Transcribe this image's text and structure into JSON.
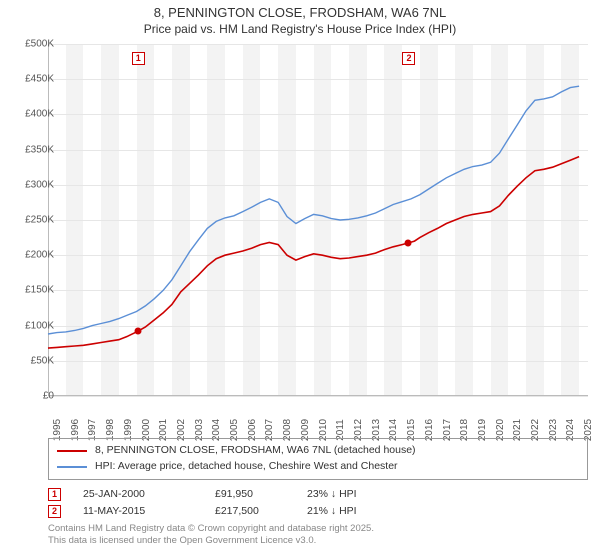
{
  "title": "8, PENNINGTON CLOSE, FRODSHAM, WA6 7NL",
  "subtitle": "Price paid vs. HM Land Registry's House Price Index (HPI)",
  "chart": {
    "type": "line",
    "background_color": "#ffffff",
    "shade_color": "#f3f3f3",
    "grid_color": "#e6e6e6",
    "axis_color": "#bbbbbb",
    "x_years": [
      1995,
      1996,
      1997,
      1998,
      1999,
      2000,
      2001,
      2002,
      2003,
      2004,
      2005,
      2006,
      2007,
      2008,
      2009,
      2010,
      2011,
      2012,
      2013,
      2014,
      2015,
      2016,
      2017,
      2018,
      2019,
      2020,
      2021,
      2022,
      2023,
      2024,
      2025
    ],
    "x_shaded_pairs": [
      [
        1996,
        1997
      ],
      [
        1998,
        1999
      ],
      [
        2000,
        2001
      ],
      [
        2002,
        2003
      ],
      [
        2004,
        2005
      ],
      [
        2006,
        2007
      ],
      [
        2008,
        2009
      ],
      [
        2010,
        2011
      ],
      [
        2012,
        2013
      ],
      [
        2014,
        2015
      ],
      [
        2016,
        2017
      ],
      [
        2018,
        2019
      ],
      [
        2020,
        2021
      ],
      [
        2022,
        2023
      ],
      [
        2024,
        2025
      ]
    ],
    "y_ticks": [
      0,
      50000,
      100000,
      150000,
      200000,
      250000,
      300000,
      350000,
      400000,
      450000,
      500000
    ],
    "y_tick_labels": [
      "£0",
      "£50K",
      "£100K",
      "£150K",
      "£200K",
      "£250K",
      "£300K",
      "£350K",
      "£400K",
      "£450K",
      "£500K"
    ],
    "ylim": [
      0,
      500000
    ],
    "xlim": [
      1995,
      2025.5
    ],
    "tick_fontsize": 10,
    "title_fontsize": 13,
    "series": [
      {
        "name": "price_paid",
        "label": "8, PENNINGTON CLOSE, FRODSHAM, WA6 7NL (detached house)",
        "color": "#cc0000",
        "line_width": 1.6,
        "data": [
          [
            1995.0,
            68000
          ],
          [
            1995.5,
            69000
          ],
          [
            1996.0,
            70000
          ],
          [
            1996.5,
            71000
          ],
          [
            1997.0,
            72000
          ],
          [
            1997.5,
            74000
          ],
          [
            1998.0,
            76000
          ],
          [
            1998.5,
            78000
          ],
          [
            1999.0,
            80000
          ],
          [
            1999.5,
            85000
          ],
          [
            2000.07,
            91950
          ],
          [
            2000.5,
            98000
          ],
          [
            2001.0,
            108000
          ],
          [
            2001.5,
            118000
          ],
          [
            2002.0,
            130000
          ],
          [
            2002.5,
            148000
          ],
          [
            2003.0,
            160000
          ],
          [
            2003.5,
            172000
          ],
          [
            2004.0,
            185000
          ],
          [
            2004.5,
            195000
          ],
          [
            2005.0,
            200000
          ],
          [
            2005.5,
            203000
          ],
          [
            2006.0,
            206000
          ],
          [
            2006.5,
            210000
          ],
          [
            2007.0,
            215000
          ],
          [
            2007.5,
            218000
          ],
          [
            2008.0,
            215000
          ],
          [
            2008.5,
            200000
          ],
          [
            2009.0,
            193000
          ],
          [
            2009.5,
            198000
          ],
          [
            2010.0,
            202000
          ],
          [
            2010.5,
            200000
          ],
          [
            2011.0,
            197000
          ],
          [
            2011.5,
            195000
          ],
          [
            2012.0,
            196000
          ],
          [
            2012.5,
            198000
          ],
          [
            2013.0,
            200000
          ],
          [
            2013.5,
            203000
          ],
          [
            2014.0,
            208000
          ],
          [
            2014.5,
            212000
          ],
          [
            2015.0,
            215000
          ],
          [
            2015.36,
            217500
          ],
          [
            2015.7,
            220000
          ],
          [
            2016.0,
            225000
          ],
          [
            2016.5,
            232000
          ],
          [
            2017.0,
            238000
          ],
          [
            2017.5,
            245000
          ],
          [
            2018.0,
            250000
          ],
          [
            2018.5,
            255000
          ],
          [
            2019.0,
            258000
          ],
          [
            2019.5,
            260000
          ],
          [
            2020.0,
            262000
          ],
          [
            2020.5,
            270000
          ],
          [
            2021.0,
            285000
          ],
          [
            2021.5,
            298000
          ],
          [
            2022.0,
            310000
          ],
          [
            2022.5,
            320000
          ],
          [
            2023.0,
            322000
          ],
          [
            2023.5,
            325000
          ],
          [
            2024.0,
            330000
          ],
          [
            2024.5,
            335000
          ],
          [
            2025.0,
            340000
          ]
        ]
      },
      {
        "name": "hpi",
        "label": "HPI: Average price, detached house, Cheshire West and Chester",
        "color": "#5b8fd6",
        "line_width": 1.4,
        "data": [
          [
            1995.0,
            88000
          ],
          [
            1995.5,
            90000
          ],
          [
            1996.0,
            91000
          ],
          [
            1996.5,
            93000
          ],
          [
            1997.0,
            96000
          ],
          [
            1997.5,
            100000
          ],
          [
            1998.0,
            103000
          ],
          [
            1998.5,
            106000
          ],
          [
            1999.0,
            110000
          ],
          [
            1999.5,
            115000
          ],
          [
            2000.0,
            120000
          ],
          [
            2000.5,
            128000
          ],
          [
            2001.0,
            138000
          ],
          [
            2001.5,
            150000
          ],
          [
            2002.0,
            165000
          ],
          [
            2002.5,
            185000
          ],
          [
            2003.0,
            205000
          ],
          [
            2003.5,
            222000
          ],
          [
            2004.0,
            238000
          ],
          [
            2004.5,
            248000
          ],
          [
            2005.0,
            253000
          ],
          [
            2005.5,
            256000
          ],
          [
            2006.0,
            262000
          ],
          [
            2006.5,
            268000
          ],
          [
            2007.0,
            275000
          ],
          [
            2007.5,
            280000
          ],
          [
            2008.0,
            275000
          ],
          [
            2008.5,
            255000
          ],
          [
            2009.0,
            245000
          ],
          [
            2009.5,
            252000
          ],
          [
            2010.0,
            258000
          ],
          [
            2010.5,
            256000
          ],
          [
            2011.0,
            252000
          ],
          [
            2011.5,
            250000
          ],
          [
            2012.0,
            251000
          ],
          [
            2012.5,
            253000
          ],
          [
            2013.0,
            256000
          ],
          [
            2013.5,
            260000
          ],
          [
            2014.0,
            266000
          ],
          [
            2014.5,
            272000
          ],
          [
            2015.0,
            276000
          ],
          [
            2015.5,
            280000
          ],
          [
            2016.0,
            286000
          ],
          [
            2016.5,
            294000
          ],
          [
            2017.0,
            302000
          ],
          [
            2017.5,
            310000
          ],
          [
            2018.0,
            316000
          ],
          [
            2018.5,
            322000
          ],
          [
            2019.0,
            326000
          ],
          [
            2019.5,
            328000
          ],
          [
            2020.0,
            332000
          ],
          [
            2020.5,
            345000
          ],
          [
            2021.0,
            365000
          ],
          [
            2021.5,
            385000
          ],
          [
            2022.0,
            405000
          ],
          [
            2022.5,
            420000
          ],
          [
            2023.0,
            422000
          ],
          [
            2023.5,
            425000
          ],
          [
            2024.0,
            432000
          ],
          [
            2024.5,
            438000
          ],
          [
            2025.0,
            440000
          ]
        ]
      }
    ],
    "markers": [
      {
        "n": "1",
        "x": 2000.07,
        "y": 91950,
        "label_y_top": 56
      },
      {
        "n": "2",
        "x": 2015.36,
        "y": 217500,
        "label_y_top": 56
      }
    ]
  },
  "legend": {
    "series1_label": "8, PENNINGTON CLOSE, FRODSHAM, WA6 7NL (detached house)",
    "series2_label": "HPI: Average price, detached house, Cheshire West and Chester"
  },
  "transactions": [
    {
      "n": "1",
      "date": "25-JAN-2000",
      "price": "£91,950",
      "diff": "23% ↓ HPI"
    },
    {
      "n": "2",
      "date": "11-MAY-2015",
      "price": "£217,500",
      "diff": "21% ↓ HPI"
    }
  ],
  "attribution_line1": "Contains HM Land Registry data © Crown copyright and database right 2025.",
  "attribution_line2": "This data is licensed under the Open Government Licence v3.0."
}
